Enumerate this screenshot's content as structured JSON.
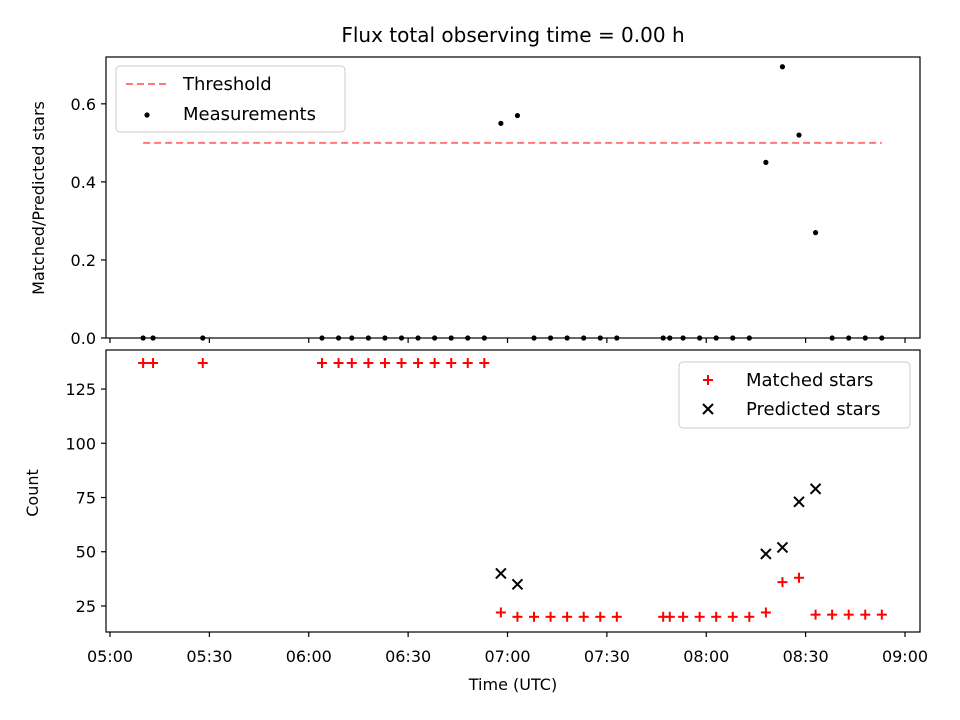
{
  "chart_data": [
    {
      "type": "scatter",
      "title": "Flux total observing time = 0.00 h",
      "ylabel": "Matched/Predicted stars",
      "xlabel": "",
      "xlim": [
        "05:00",
        "09:00"
      ],
      "ylim": [
        0,
        0.72
      ],
      "yticks": [
        0.0,
        0.2,
        0.4,
        0.6
      ],
      "ytick_labels": [
        "0.0",
        "0.2",
        "0.4",
        "0.6"
      ],
      "legend_position": "top-left",
      "threshold": {
        "name": "Threshold",
        "value": 0.5,
        "x_start": "05:10",
        "x_end": "08:53",
        "color": "#ff7777",
        "style": "dashed"
      },
      "series": [
        {
          "name": "Measurements",
          "color": "#000000",
          "marker": "dot",
          "x": [
            "05:10",
            "05:13",
            "05:28",
            "06:04",
            "06:09",
            "06:13",
            "06:18",
            "06:23",
            "06:28",
            "06:33",
            "06:38",
            "06:43",
            "06:48",
            "06:53",
            "06:58",
            "07:03",
            "07:08",
            "07:13",
            "07:18",
            "07:23",
            "07:28",
            "07:33",
            "07:47",
            "07:49",
            "07:53",
            "07:58",
            "08:03",
            "08:08",
            "08:13",
            "08:18",
            "08:23",
            "08:28",
            "08:33",
            "08:38",
            "08:43",
            "08:48",
            "08:53"
          ],
          "values": [
            0,
            0,
            0,
            0,
            0,
            0,
            0,
            0,
            0,
            0,
            0,
            0,
            0,
            0,
            0.55,
            0.57,
            0,
            0,
            0,
            0,
            0,
            0,
            0,
            0,
            0,
            0,
            0,
            0,
            0,
            0.45,
            0.695,
            0.52,
            0.27,
            0,
            0,
            0,
            0
          ]
        }
      ]
    },
    {
      "type": "scatter",
      "title": "",
      "ylabel": "Count",
      "xlabel": "Time (UTC)",
      "xlim": [
        "05:00",
        "09:00"
      ],
      "xticks": [
        "05:00",
        "05:30",
        "06:00",
        "06:30",
        "07:00",
        "07:30",
        "08:00",
        "08:30",
        "09:00"
      ],
      "ylim": [
        13,
        143
      ],
      "yticks": [
        25,
        50,
        75,
        100,
        125
      ],
      "ytick_labels": [
        "25",
        "50",
        "75",
        "100",
        "125"
      ],
      "legend_position": "top-right",
      "series": [
        {
          "name": "Matched stars",
          "color": "#ff0000",
          "marker": "plus",
          "x": [
            "05:10",
            "05:13",
            "05:28",
            "06:04",
            "06:09",
            "06:13",
            "06:18",
            "06:23",
            "06:28",
            "06:33",
            "06:38",
            "06:43",
            "06:48",
            "06:53",
            "06:58",
            "07:03",
            "07:08",
            "07:13",
            "07:18",
            "07:23",
            "07:28",
            "07:33",
            "07:47",
            "07:49",
            "07:53",
            "07:58",
            "08:03",
            "08:08",
            "08:13",
            "08:18",
            "08:23",
            "08:28",
            "08:33",
            "08:38",
            "08:43",
            "08:48",
            "08:53"
          ],
          "values": [
            137,
            137,
            137,
            137,
            137,
            137,
            137,
            137,
            137,
            137,
            137,
            137,
            137,
            137,
            22,
            20,
            20,
            20,
            20,
            20,
            20,
            20,
            20,
            20,
            20,
            20,
            20,
            20,
            20,
            22,
            36,
            38,
            21,
            21,
            21,
            21,
            21
          ]
        },
        {
          "name": "Predicted stars",
          "color": "#000000",
          "marker": "x",
          "x": [
            "06:58",
            "07:03",
            "08:18",
            "08:23",
            "08:28",
            "08:33"
          ],
          "values": [
            40,
            35,
            49,
            52,
            73,
            79
          ]
        }
      ]
    }
  ]
}
